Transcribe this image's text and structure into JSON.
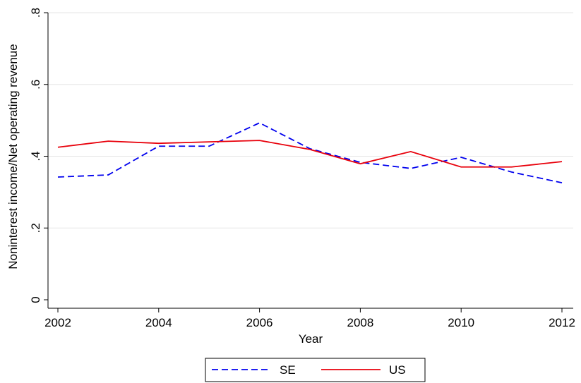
{
  "chart_data": {
    "type": "line",
    "xlabel": "Year",
    "ylabel": "Noninterest income/Net operating revenue",
    "x": [
      2002,
      2003,
      2004,
      2005,
      2006,
      2007,
      2008,
      2009,
      2010,
      2011,
      2012
    ],
    "series": [
      {
        "name": "SE",
        "color": "#0000ee",
        "dash": true,
        "values": [
          0.342,
          0.348,
          0.428,
          0.428,
          0.493,
          0.421,
          0.383,
          0.366,
          0.397,
          0.356,
          0.326
        ]
      },
      {
        "name": "US",
        "color": "#e8000b",
        "dash": false,
        "values": [
          0.425,
          0.442,
          0.436,
          0.44,
          0.444,
          0.419,
          0.379,
          0.413,
          0.37,
          0.37,
          0.385
        ]
      }
    ],
    "xlim": [
      2002,
      2012
    ],
    "xticks": [
      2002,
      2004,
      2006,
      2008,
      2010,
      2012
    ],
    "ylim": [
      0,
      0.8
    ],
    "yticks": [
      0,
      {
        "value": 0.2,
        "label": ".2"
      },
      {
        "value": 0.4,
        "label": ".4"
      },
      {
        "value": 0.6,
        "label": ".6"
      },
      {
        "value": 0.8,
        "label": ".8"
      }
    ],
    "grid": true,
    "legend": "bottom"
  }
}
